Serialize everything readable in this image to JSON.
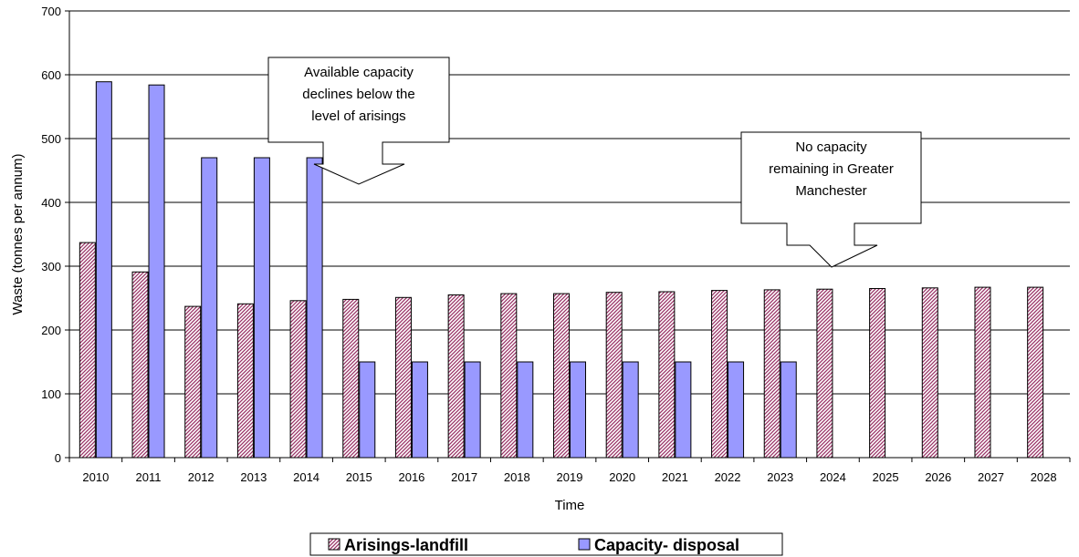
{
  "chart_data": {
    "type": "bar",
    "ylabel": "Waste (tonnes per annum)",
    "xlabel": "Time",
    "ylim": [
      0,
      700
    ],
    "yticks": [
      0,
      100,
      200,
      300,
      400,
      500,
      600,
      700
    ],
    "grid": true,
    "legend_position": "bottom",
    "categories": [
      "2010",
      "2011",
      "2012",
      "2013",
      "2014",
      "2015",
      "2016",
      "2017",
      "2018",
      "2019",
      "2020",
      "2021",
      "2022",
      "2023",
      "2024",
      "2025",
      "2026",
      "2027",
      "2028"
    ],
    "series": [
      {
        "name": "Arisings-landfill",
        "color": "#993366",
        "pattern": "diagonal-hatch",
        "values": [
          337,
          291,
          237,
          241,
          246,
          248,
          251,
          255,
          257,
          257,
          259,
          260,
          262,
          263,
          264,
          265,
          266,
          267,
          267
        ]
      },
      {
        "name": "Capacity- disposal",
        "color": "#9999ff",
        "pattern": "solid",
        "values": [
          589,
          584,
          470,
          470,
          470,
          150,
          150,
          150,
          150,
          150,
          150,
          150,
          150,
          150,
          null,
          null,
          null,
          null,
          null
        ]
      }
    ],
    "annotations": [
      {
        "lines": [
          "Available capacity",
          "declines below the",
          "level of arisings"
        ]
      },
      {
        "lines": [
          "No capacity",
          "remaining in Greater",
          "Manchester"
        ]
      }
    ]
  }
}
